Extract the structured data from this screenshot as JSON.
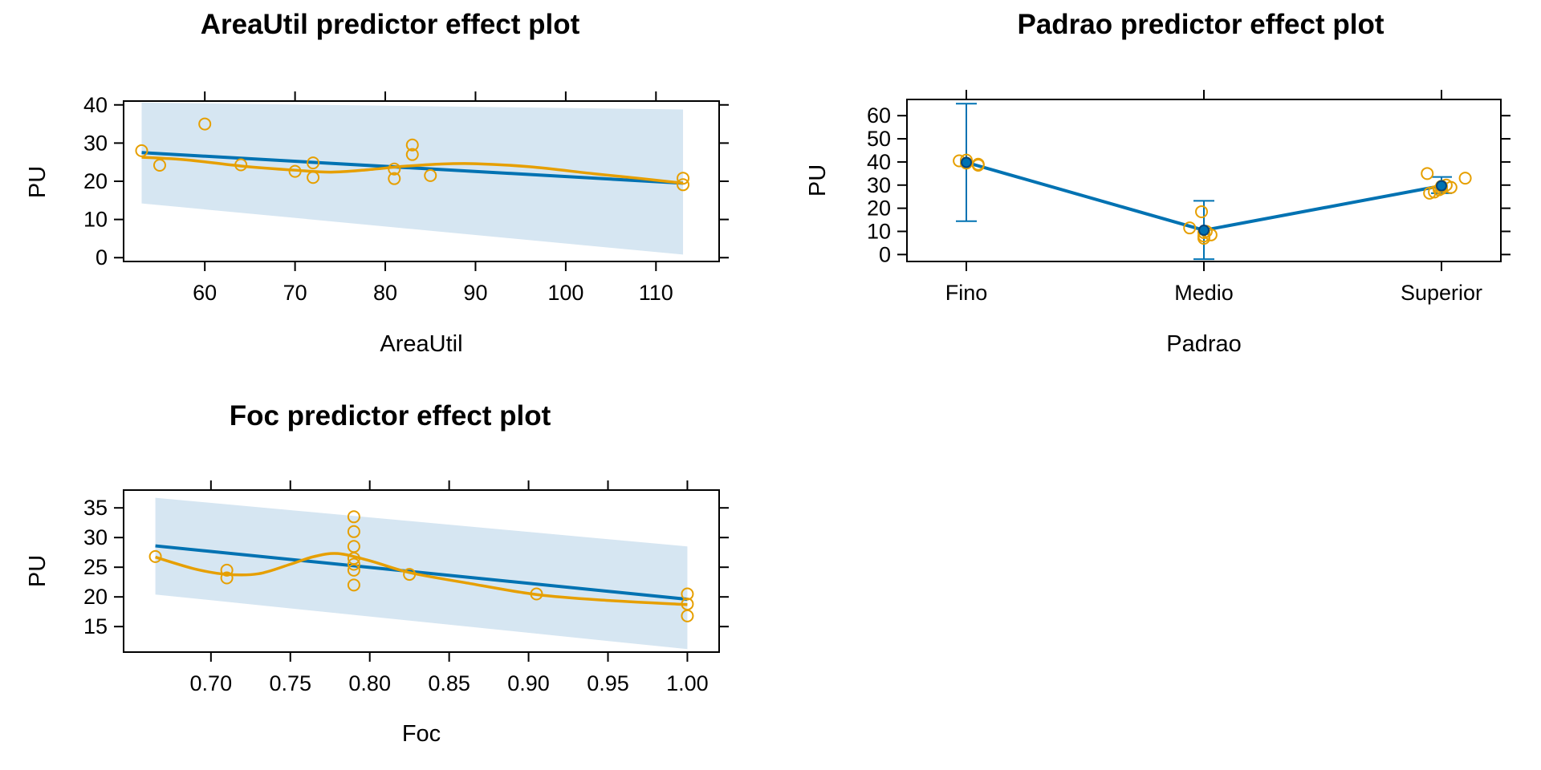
{
  "colors": {
    "fit": "#0072B2",
    "band": "#D6E6F2",
    "partial": "#E69F00",
    "axis": "#000000"
  },
  "chart_data": [
    {
      "id": "areautil",
      "type": "line",
      "title": "AreaUtil predictor effect plot",
      "xlabel": "AreaUtil",
      "ylabel": "PU",
      "xlim": [
        51,
        117
      ],
      "ylim": [
        -1,
        41
      ],
      "xticks": [
        60,
        70,
        80,
        90,
        100,
        110
      ],
      "yticks": [
        0,
        10,
        20,
        30,
        40
      ],
      "fit": {
        "x": [
          53,
          113
        ],
        "y": [
          27.5,
          19.5
        ]
      },
      "band": {
        "x": [
          53,
          113
        ],
        "lower": [
          14.2,
          0.8
        ],
        "upper": [
          40.6,
          38.8
        ]
      },
      "smooth": {
        "x": [
          53,
          58,
          64,
          70,
          74,
          78,
          82,
          86,
          90,
          96,
          103,
          108,
          113
        ],
        "y": [
          26.3,
          25.6,
          24.0,
          22.9,
          22.4,
          23.0,
          23.9,
          24.5,
          24.6,
          23.8,
          22.0,
          20.8,
          19.5
        ]
      },
      "points": {
        "x": [
          53,
          55,
          60,
          64,
          70,
          72,
          72,
          81,
          81,
          83,
          83,
          85,
          113,
          113
        ],
        "y": [
          28,
          24.2,
          35,
          24.3,
          22.6,
          24.8,
          21,
          23.2,
          20.7,
          29.5,
          27,
          21.5,
          20.8,
          19.1
        ]
      }
    },
    {
      "id": "padrao",
      "type": "line",
      "title": "Padrao predictor effect plot",
      "xlabel": "Padrao",
      "ylabel": "PU",
      "categories": [
        "Fino",
        "Medio",
        "Superior"
      ],
      "ylim": [
        -3,
        67
      ],
      "yticks": [
        0,
        10,
        20,
        30,
        40,
        50,
        60
      ],
      "values": [
        39.8,
        10.5,
        29.7
      ],
      "lower": [
        14.4,
        -2,
        26.5
      ],
      "upper": [
        65.2,
        23.2,
        33.5
      ],
      "points": {
        "x": [
          0.97,
          1.0,
          1.0,
          1.05,
          1.05,
          1.94,
          1.99,
          2.0,
          2.0,
          2.0,
          2.01,
          2.03,
          2.94,
          2.95,
          2.97,
          2.99,
          3.0,
          3.0,
          3.02,
          3.04,
          3.1
        ],
        "y": [
          40.5,
          40.8,
          39.5,
          39.0,
          38.6,
          11.5,
          18.5,
          9.5,
          8.0,
          7.0,
          10.0,
          8.5,
          35.0,
          26.5,
          27.0,
          28.0,
          28.5,
          29.5,
          30.0,
          29.0,
          33.0
        ]
      }
    },
    {
      "id": "foc",
      "type": "line",
      "title": "Foc predictor effect plot",
      "xlabel": "Foc",
      "ylabel": "PU",
      "xlim": [
        0.645,
        1.02
      ],
      "ylim": [
        10.7,
        38
      ],
      "xticks": [
        0.7,
        0.75,
        0.8,
        0.85,
        0.9,
        0.95,
        1.0
      ],
      "xticklabels": [
        "0.70",
        "0.75",
        "0.80",
        "0.85",
        "0.90",
        "0.95",
        "1.00"
      ],
      "yticks": [
        15,
        20,
        25,
        30,
        35
      ],
      "fit": {
        "x": [
          0.665,
          1.0
        ],
        "y": [
          28.6,
          19.6
        ]
      },
      "band": {
        "x": [
          0.665,
          1.0
        ],
        "lower": [
          20.4,
          11.2
        ],
        "upper": [
          36.7,
          28.5
        ]
      },
      "smooth": {
        "x": [
          0.665,
          0.69,
          0.71,
          0.73,
          0.75,
          0.765,
          0.78,
          0.8,
          0.825,
          0.86,
          0.905,
          0.95,
          1.0
        ],
        "y": [
          26.7,
          24.7,
          23.8,
          23.9,
          25.5,
          26.8,
          27.3,
          26.1,
          24.1,
          22.4,
          20.4,
          19.4,
          18.7
        ]
      },
      "points": {
        "x": [
          0.665,
          0.71,
          0.71,
          0.79,
          0.79,
          0.79,
          0.79,
          0.79,
          0.79,
          0.79,
          0.825,
          0.905,
          1.0,
          1.0,
          1.0
        ],
        "y": [
          26.8,
          24.5,
          23.2,
          33.5,
          31.0,
          28.5,
          25.5,
          24.5,
          22.0,
          26.5,
          23.8,
          20.5,
          20.5,
          18.8,
          16.8
        ]
      }
    }
  ]
}
